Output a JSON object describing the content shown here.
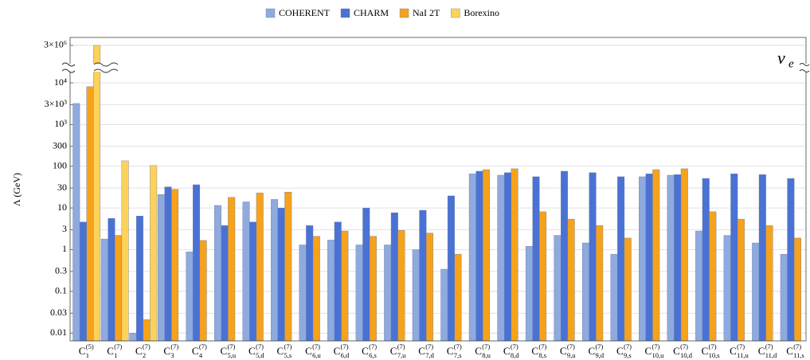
{
  "chart_data": {
    "type": "bar",
    "y_label": "Λ (GeV)",
    "annotation": {
      "symbol": "ν",
      "sub": "e"
    },
    "categories": [
      {
        "symbol": "C",
        "sub": "1",
        "sup": "(5)"
      },
      {
        "symbol": "C",
        "sub": "1",
        "sup": "(7)"
      },
      {
        "symbol": "C",
        "sub": "2",
        "sup": "(7)"
      },
      {
        "symbol": "C",
        "sub": "3",
        "sup": "(7)"
      },
      {
        "symbol": "C",
        "sub": "4",
        "sup": "(7)"
      },
      {
        "symbol": "C",
        "sub": "5,u",
        "sup": "(7)"
      },
      {
        "symbol": "C",
        "sub": "5,d",
        "sup": "(7)"
      },
      {
        "symbol": "C",
        "sub": "5,s",
        "sup": "(7)"
      },
      {
        "symbol": "C",
        "sub": "6,u",
        "sup": "(7)"
      },
      {
        "symbol": "C",
        "sub": "6,d",
        "sup": "(7)"
      },
      {
        "symbol": "C",
        "sub": "6,s",
        "sup": "(7)"
      },
      {
        "symbol": "C",
        "sub": "7,u",
        "sup": "(7)"
      },
      {
        "symbol": "C",
        "sub": "7,d",
        "sup": "(7)"
      },
      {
        "symbol": "C",
        "sub": "7,s",
        "sup": "(7)"
      },
      {
        "symbol": "C",
        "sub": "8,u",
        "sup": "(7)"
      },
      {
        "symbol": "C",
        "sub": "8,d",
        "sup": "(7)"
      },
      {
        "symbol": "C",
        "sub": "8,s",
        "sup": "(7)"
      },
      {
        "symbol": "C",
        "sub": "9,u",
        "sup": "(7)"
      },
      {
        "symbol": "C",
        "sub": "9,d",
        "sup": "(7)"
      },
      {
        "symbol": "C",
        "sub": "9,s",
        "sup": "(7)"
      },
      {
        "symbol": "C",
        "sub": "10,u",
        "sup": "(7)"
      },
      {
        "symbol": "C",
        "sub": "10,d",
        "sup": "(7)"
      },
      {
        "symbol": "C",
        "sub": "10,s",
        "sup": "(7)"
      },
      {
        "symbol": "C",
        "sub": "11,u",
        "sup": "(7)"
      },
      {
        "symbol": "C",
        "sub": "11,d",
        "sup": "(7)"
      },
      {
        "symbol": "C",
        "sub": "11,s",
        "sup": "(7)"
      }
    ],
    "series": [
      {
        "name": "COHERENT",
        "color": "#8eaadf",
        "values": [
          3200,
          1.8,
          0.01,
          21,
          0.89,
          11.5,
          14,
          16,
          1.3,
          1.7,
          1.3,
          1.3,
          1.0,
          0.34,
          66,
          61,
          1.2,
          2.2,
          1.45,
          0.78,
          56,
          61,
          2.8,
          2.2,
          1.45,
          0.78
        ]
      },
      {
        "name": "CHARM",
        "color": "#4a72d4",
        "values": [
          4.6,
          5.6,
          6.4,
          32,
          36,
          3.8,
          4.6,
          10,
          3.8,
          4.6,
          10,
          7.7,
          8.8,
          19.5,
          76,
          70,
          56,
          76,
          70,
          56,
          66,
          63,
          51,
          66,
          63,
          51
        ]
      },
      {
        "name": "NaI 2T",
        "color": "#f7a21b",
        "values": [
          8100,
          2.2,
          0.021,
          28,
          1.66,
          18,
          23,
          24,
          2.1,
          2.8,
          2.1,
          2.9,
          2.5,
          0.78,
          83,
          87,
          8.1,
          5.4,
          3.8,
          1.9,
          83,
          87,
          8.1,
          5.4,
          3.8,
          1.9
        ]
      },
      {
        "name": "Borexino",
        "color": "#fdd25a",
        "values": [
          3000000,
          135,
          104,
          null,
          null,
          null,
          null,
          null,
          null,
          null,
          null,
          null,
          null,
          null,
          null,
          null,
          null,
          null,
          null,
          null,
          null,
          null,
          null,
          null,
          null,
          null
        ]
      }
    ],
    "ylim": [
      0.0065,
      10000000
    ],
    "log_scale": true,
    "broken_axis": true,
    "yticks": [
      0.01,
      0.03,
      0.1,
      0.3,
      1,
      3,
      10,
      30,
      100,
      300,
      {
        "value": 1000,
        "label": "10³"
      },
      {
        "value": 3000,
        "label": "3×10³"
      },
      {
        "value": 10000,
        "label": "10⁴"
      },
      {
        "value": 3000000,
        "label": "3×10⁶"
      }
    ],
    "grid": true,
    "legend": "top"
  }
}
